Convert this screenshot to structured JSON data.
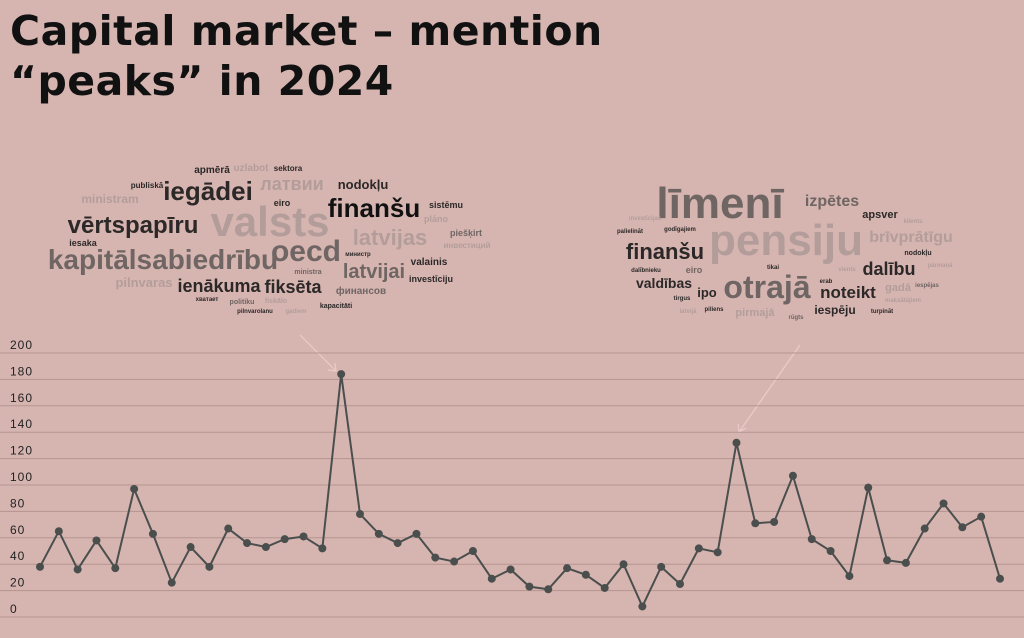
{
  "chart_data": {
    "type": "line",
    "title": "Capital market – mention “peaks” in 2024",
    "values": [
      38,
      65,
      36,
      58,
      37,
      97,
      63,
      26,
      53,
      38,
      67,
      56,
      53,
      59,
      61,
      52,
      184,
      78,
      63,
      56,
      63,
      45,
      42,
      50,
      29,
      36,
      23,
      21,
      37,
      32,
      22,
      40,
      8,
      38,
      25,
      52,
      49,
      132,
      71,
      72,
      107,
      59,
      50,
      31,
      98,
      43,
      41,
      67,
      86,
      68,
      76,
      29
    ],
    "color": "#4a4f4e",
    "ylim": [
      0,
      200
    ],
    "yticks": [
      0,
      20,
      40,
      60,
      80,
      100,
      120,
      140,
      160,
      180,
      200
    ],
    "grid": true,
    "word_clouds": [
      [
        "apmērā",
        "uzlabot",
        "sektora",
        "publiskā",
        "iegādei",
        "латвии",
        "nodokļu",
        "ministram",
        "eiro",
        "sistēmu",
        "vērtspapīru",
        "valsts",
        "finanšu",
        "plāno",
        "iesaka",
        "oecd",
        "latvijas",
        "piešķirt",
        "инвестиций",
        "kapitālsabiedrību",
        "valainis",
        "министр",
        "latvijai",
        "ministra",
        "investīciju",
        "pilnvaras",
        "ienākuma",
        "fiksēta",
        "финансов",
        "хватает",
        "politiku",
        "fiskālo",
        "gadiem",
        "pilnvarolanu",
        "kapacitāti"
      ],
      [
        "līmenī",
        "izpētes",
        "investīcijas",
        "pensiju",
        "apsver",
        "klients",
        "palielināt",
        "godīgajiem",
        "brīvprātīgu",
        "finanšu",
        "nodokļu",
        "tikai",
        "vients",
        "dalību",
        "pārmaņā",
        "dalībnieku",
        "eiro",
        "valdības",
        "erab",
        "otrajā",
        "noteikt",
        "gadā",
        "iespējas",
        "ipo",
        "tirgus",
        "maksātājiem",
        "piliens",
        "pirmajā",
        "iespēju",
        "turpināt",
        "latvijā",
        "rūgts"
      ]
    ]
  }
}
